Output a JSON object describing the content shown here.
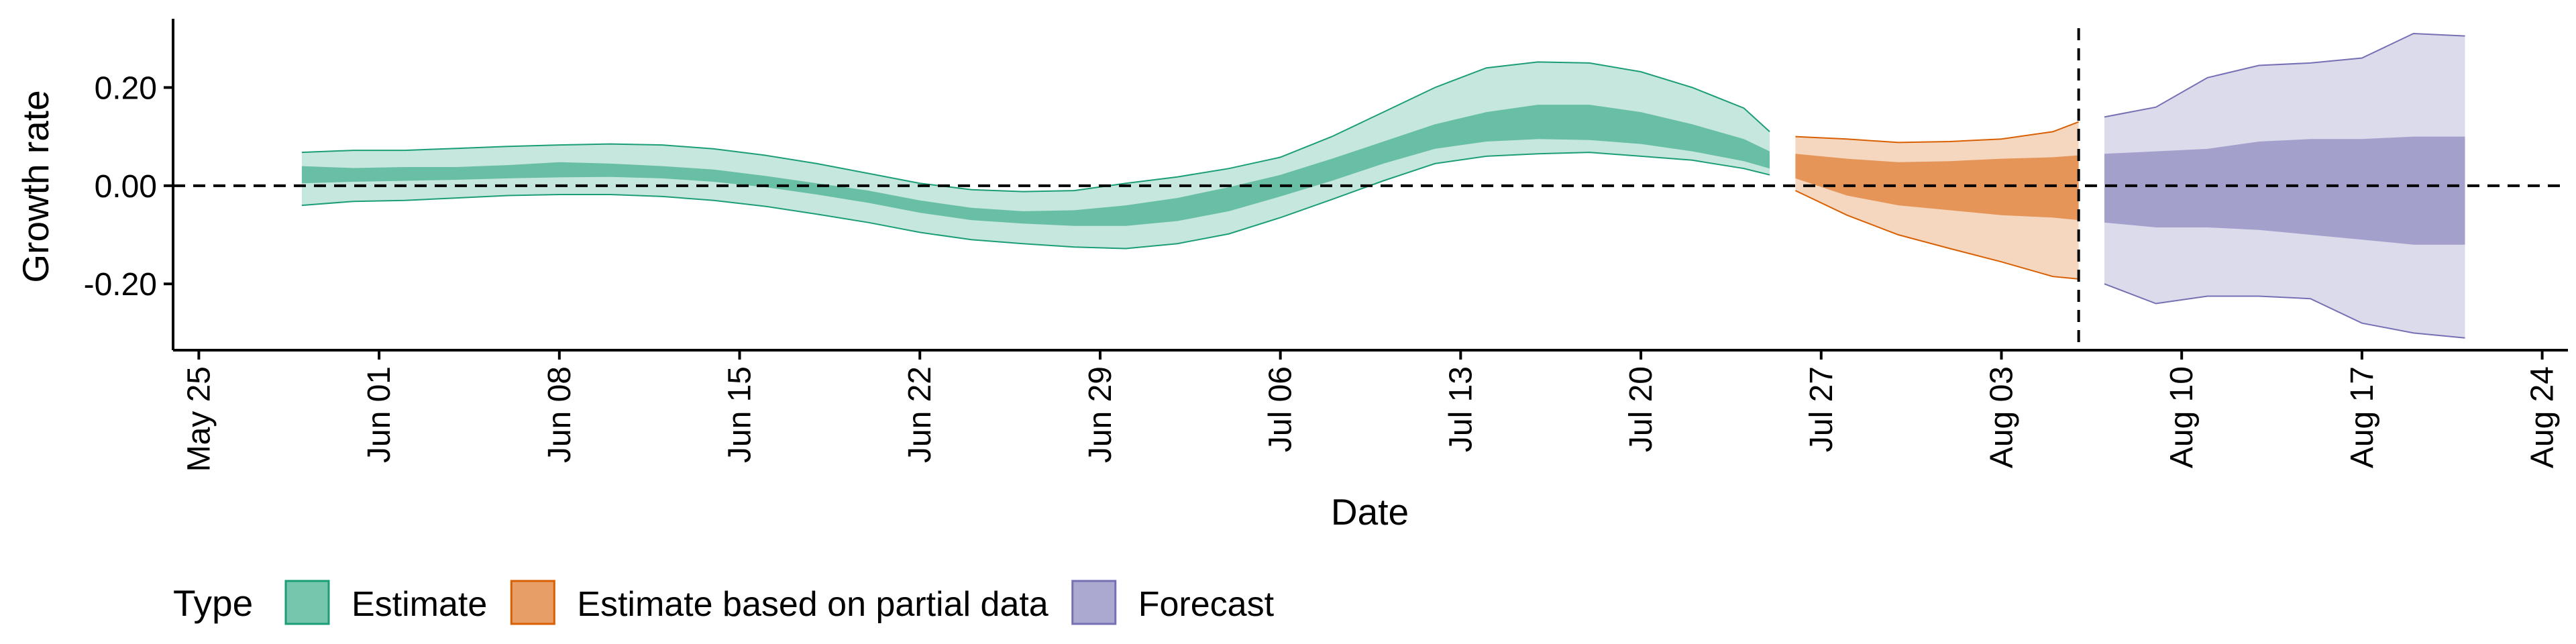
{
  "chart_data": {
    "type": "area",
    "title": "",
    "xlabel": "Date",
    "ylabel": "Growth rate",
    "x_axis": {
      "type": "date",
      "range": [
        "2020-05-24",
        "2020-08-25"
      ],
      "tick_labels": [
        "May 25",
        "Jun 01",
        "Jun 08",
        "Jun 15",
        "Jun 22",
        "Jun 29",
        "Jul 06",
        "Jul 13",
        "Jul 20",
        "Jul 27",
        "Aug 03",
        "Aug 10",
        "Aug 17",
        "Aug 24"
      ],
      "tick_dates": [
        "2020-05-25",
        "2020-06-01",
        "2020-06-08",
        "2020-06-15",
        "2020-06-22",
        "2020-06-29",
        "2020-07-06",
        "2020-07-13",
        "2020-07-20",
        "2020-07-27",
        "2020-08-03",
        "2020-08-10",
        "2020-08-17",
        "2020-08-24"
      ]
    },
    "y_axis": {
      "range": [
        -0.335,
        0.34
      ],
      "tick_values": [
        0.2,
        0,
        -0.2
      ],
      "tick_labels": [
        "0.20",
        "0.00",
        "-0.20"
      ]
    },
    "grid": false,
    "reference_lines": [
      {
        "orientation": "horizontal",
        "y": 0,
        "style": "dashed"
      },
      {
        "orientation": "vertical",
        "x": "2020-08-06",
        "style": "dashed"
      }
    ],
    "legend": {
      "title": "Type",
      "position": "bottom-left",
      "items": [
        {
          "label": "Estimate",
          "fill": "#1b9e77",
          "opacity": 0.6
        },
        {
          "label": "Estimate based on partial data",
          "fill": "#d95f02",
          "opacity": 0.6
        },
        {
          "label": "Forecast",
          "fill": "#7570b3",
          "opacity": 0.6
        }
      ]
    },
    "series": [
      {
        "name": "Estimate",
        "color": "#1b9e77",
        "x": [
          "2020-05-29",
          "2020-05-31",
          "2020-06-02",
          "2020-06-04",
          "2020-06-06",
          "2020-06-08",
          "2020-06-10",
          "2020-06-12",
          "2020-06-14",
          "2020-06-16",
          "2020-06-18",
          "2020-06-20",
          "2020-06-22",
          "2020-06-24",
          "2020-06-26",
          "2020-06-28",
          "2020-06-30",
          "2020-07-02",
          "2020-07-04",
          "2020-07-06",
          "2020-07-08",
          "2020-07-10",
          "2020-07-12",
          "2020-07-14",
          "2020-07-16",
          "2020-07-18",
          "2020-07-20",
          "2020-07-22",
          "2020-07-24",
          "2020-07-25"
        ],
        "lower_90": [
          -0.04,
          -0.032,
          -0.03,
          -0.025,
          -0.02,
          -0.018,
          -0.018,
          -0.022,
          -0.03,
          -0.042,
          -0.058,
          -0.075,
          -0.095,
          -0.11,
          -0.118,
          -0.125,
          -0.128,
          -0.118,
          -0.098,
          -0.065,
          -0.028,
          0.01,
          0.045,
          0.06,
          0.065,
          0.068,
          0.06,
          0.052,
          0.035,
          0.022
        ],
        "upper_90": [
          0.068,
          0.072,
          0.072,
          0.076,
          0.08,
          0.083,
          0.085,
          0.083,
          0.075,
          0.062,
          0.045,
          0.025,
          0.005,
          -0.008,
          -0.012,
          -0.01,
          0.005,
          0.018,
          0.035,
          0.058,
          0.1,
          0.15,
          0.2,
          0.24,
          0.252,
          0.25,
          0.232,
          0.2,
          0.158,
          0.11
        ],
        "lower_50": [
          0.005,
          0.008,
          0.01,
          0.012,
          0.015,
          0.017,
          0.018,
          0.015,
          0.008,
          -0.003,
          -0.018,
          -0.035,
          -0.055,
          -0.07,
          -0.077,
          -0.082,
          -0.082,
          -0.072,
          -0.052,
          -0.022,
          0.01,
          0.045,
          0.075,
          0.09,
          0.095,
          0.093,
          0.085,
          0.07,
          0.05,
          0.035
        ],
        "upper_50": [
          0.04,
          0.036,
          0.038,
          0.038,
          0.042,
          0.048,
          0.045,
          0.04,
          0.033,
          0.02,
          0.005,
          -0.01,
          -0.03,
          -0.045,
          -0.052,
          -0.05,
          -0.04,
          -0.025,
          -0.003,
          0.022,
          0.055,
          0.09,
          0.125,
          0.15,
          0.165,
          0.165,
          0.15,
          0.125,
          0.095,
          0.07
        ]
      },
      {
        "name": "Estimate based on partial data",
        "color": "#d95f02",
        "x": [
          "2020-07-26",
          "2020-07-28",
          "2020-07-30",
          "2020-08-01",
          "2020-08-03",
          "2020-08-05",
          "2020-08-06"
        ],
        "lower_90": [
          -0.01,
          -0.06,
          -0.1,
          -0.128,
          -0.155,
          -0.185,
          -0.19
        ],
        "upper_90": [
          0.1,
          0.095,
          0.088,
          0.09,
          0.095,
          0.11,
          0.13
        ],
        "lower_50": [
          0.015,
          -0.02,
          -0.04,
          -0.05,
          -0.06,
          -0.065,
          -0.07
        ],
        "upper_50": [
          0.065,
          0.055,
          0.048,
          0.05,
          0.055,
          0.058,
          0.062
        ]
      },
      {
        "name": "Forecast",
        "color": "#7570b3",
        "x": [
          "2020-08-07",
          "2020-08-09",
          "2020-08-11",
          "2020-08-13",
          "2020-08-15",
          "2020-08-17",
          "2020-08-19",
          "2020-08-21"
        ],
        "lower_90": [
          -0.2,
          -0.24,
          -0.225,
          -0.225,
          -0.23,
          -0.28,
          -0.3,
          -0.31
        ],
        "upper_90": [
          0.14,
          0.16,
          0.22,
          0.245,
          0.25,
          0.26,
          0.31,
          0.305
        ],
        "lower_50": [
          -0.075,
          -0.085,
          -0.085,
          -0.09,
          -0.1,
          -0.11,
          -0.12,
          -0.12
        ],
        "upper_50": [
          0.065,
          0.07,
          0.075,
          0.09,
          0.095,
          0.095,
          0.1,
          0.1
        ]
      }
    ]
  }
}
